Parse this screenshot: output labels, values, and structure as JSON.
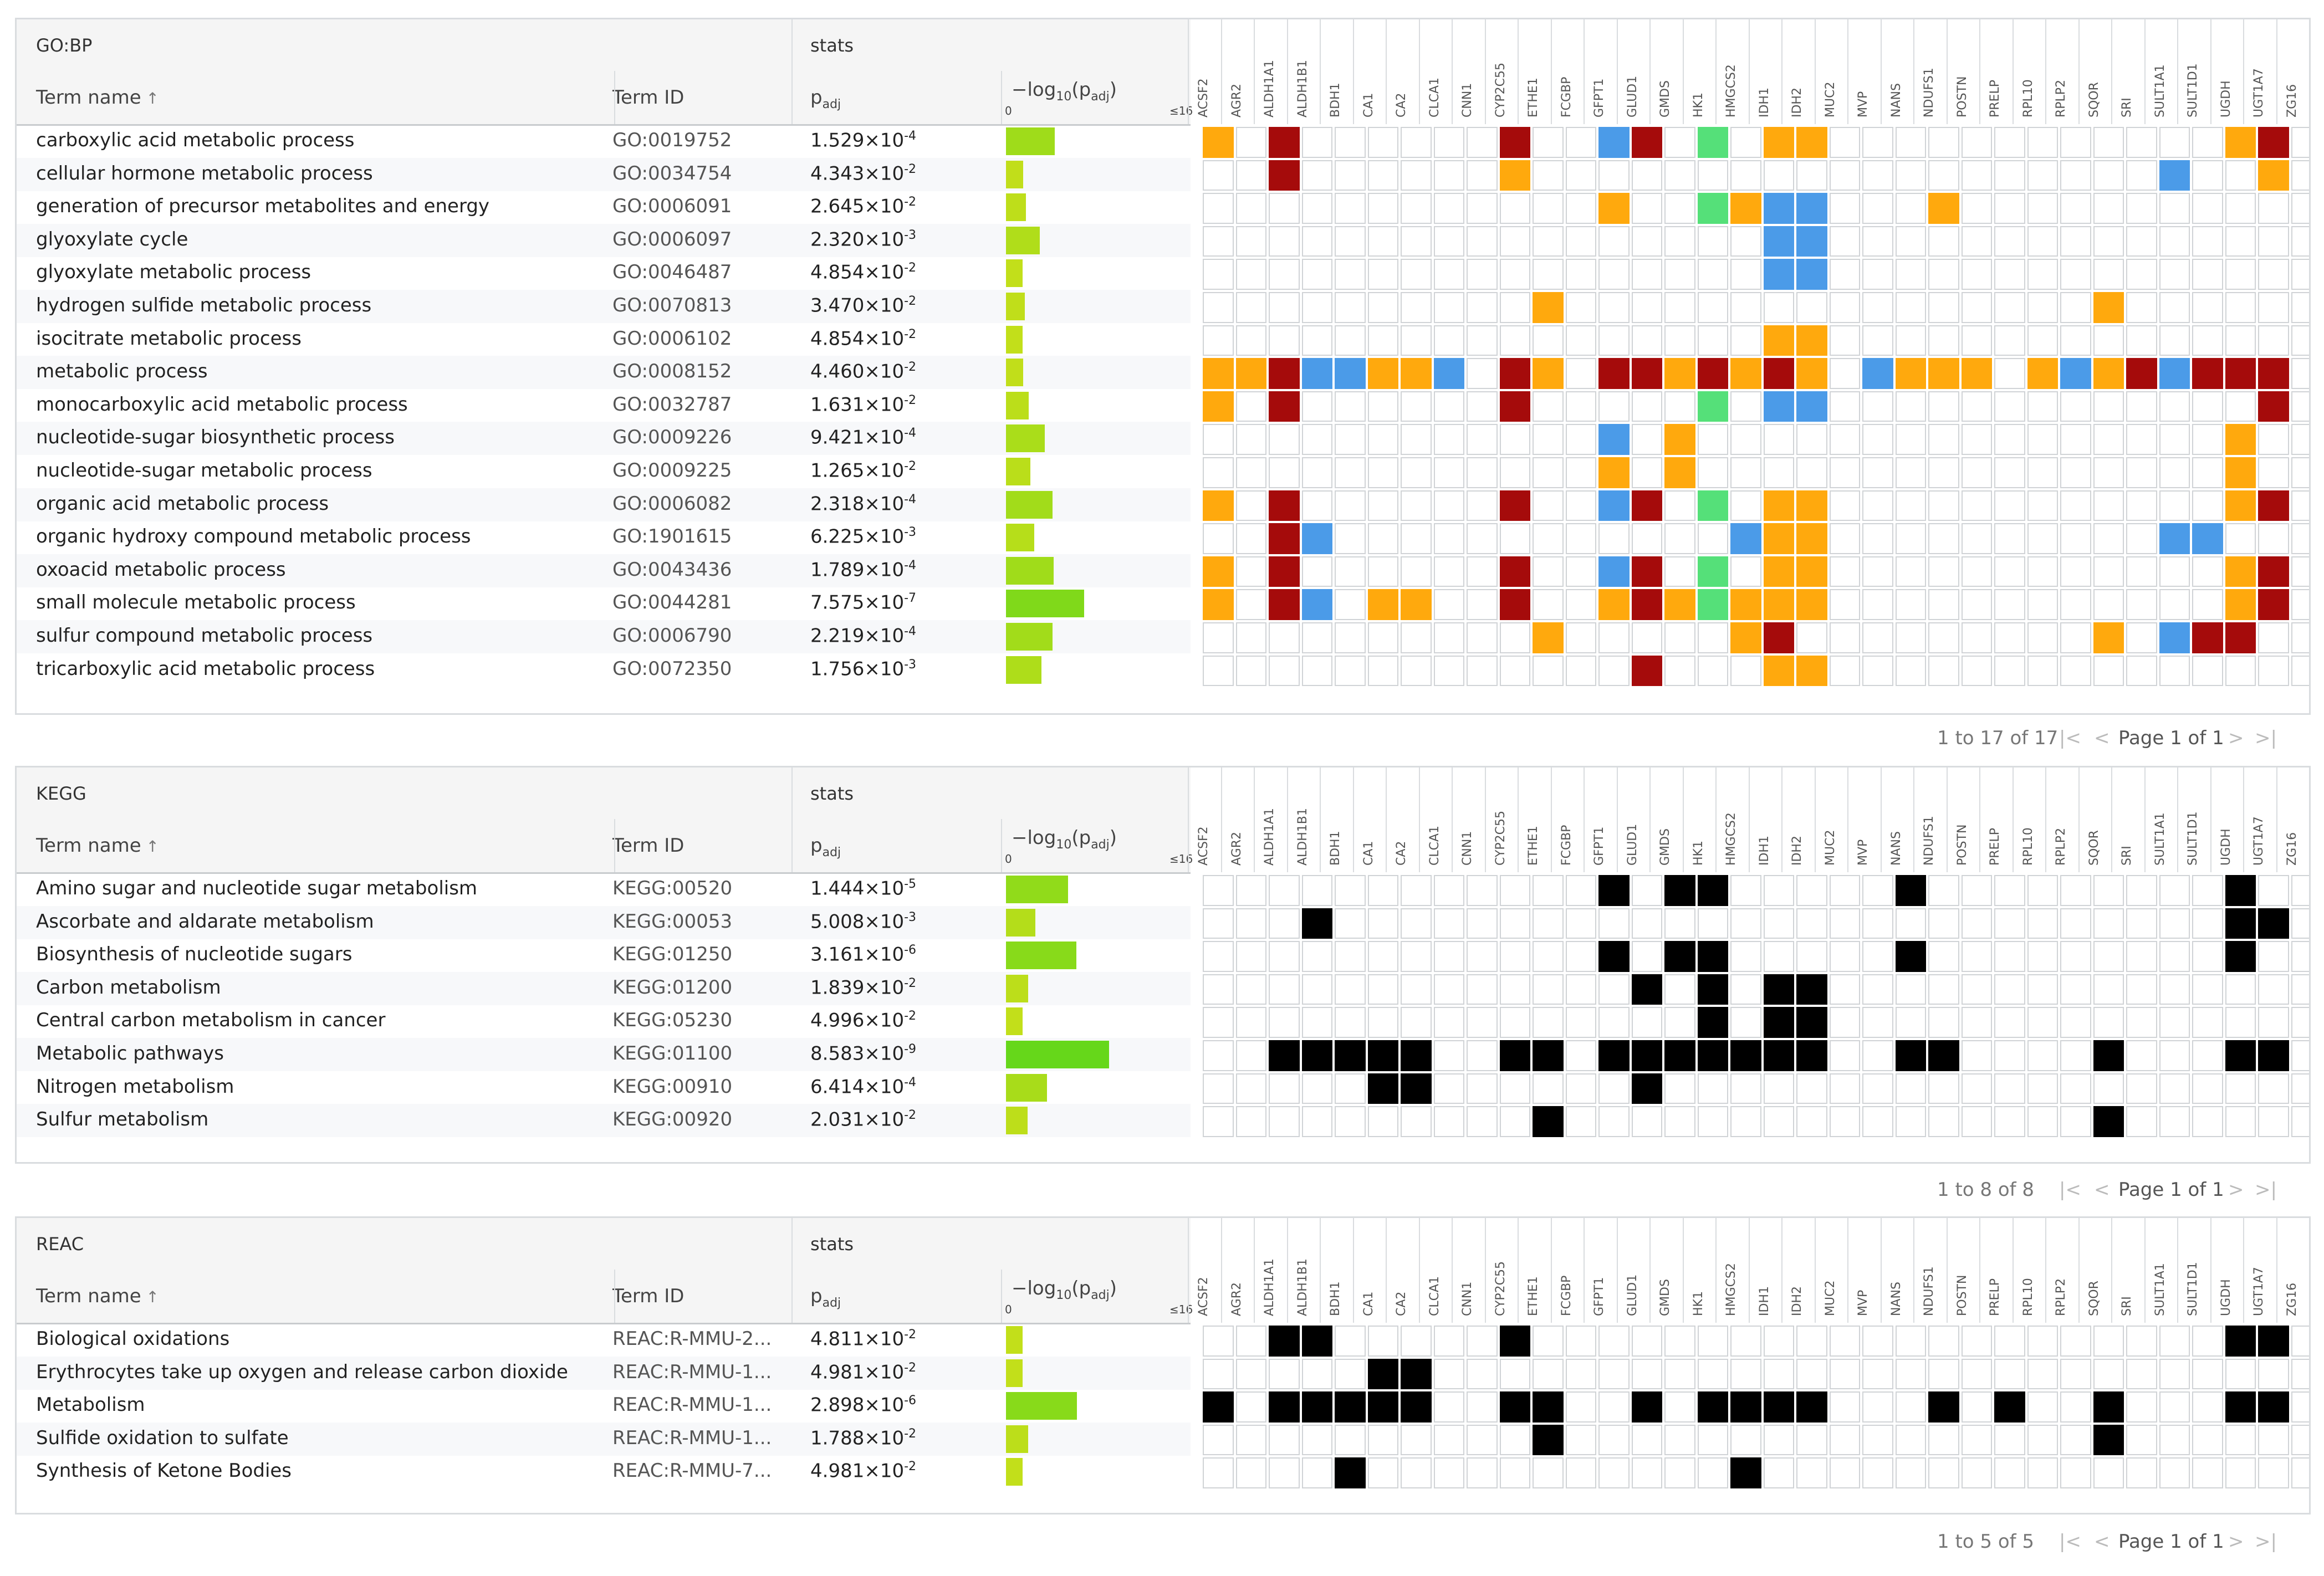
{
  "genes": [
    "ACSF2",
    "AGR2",
    "ALDH1A1",
    "ALDH1B1",
    "BDH1",
    "CA1",
    "CA2",
    "CLCA1",
    "CNN1",
    "CYP2C55",
    "ETHE1",
    "FCGBP",
    "GFPT1",
    "GLUD1",
    "GMDS",
    "HK1",
    "HMGCS2",
    "IDH1",
    "IDH2",
    "MUC2",
    "MVP",
    "NANS",
    "NDUFS1",
    "POSTN",
    "PRELP",
    "RPL10",
    "RPLP2",
    "SQOR",
    "SRI",
    "SULT1A1",
    "SULT1D1",
    "UGDH",
    "UGT1A7",
    "ZG16"
  ],
  "colors": {
    "orange": "#ffa90d",
    "darkred": "#a50b0b",
    "blue": "#4b9be8",
    "green": "#55e079",
    "black": "#000000",
    "empty": "#ffffff",
    "border": "#d0d3d6",
    "yellow": "#d4e01a",
    "lime": "#66d71a"
  },
  "columns": {
    "term_name": "Term name",
    "term_id": "Term ID",
    "padj": "p",
    "padj_sub": "adj",
    "log_label": "−log",
    "log_sub": "10",
    "log_paren_open": "(p",
    "log_paren_sub": "adj",
    "log_paren_close": ")",
    "stats": "stats",
    "sort_icon": "↑",
    "tick_min": "0",
    "tick_max": "≤16"
  },
  "pagination": {
    "first": "|<",
    "prev": "<",
    "page": "Page 1 of 1",
    "next": ">",
    "last": ">|"
  },
  "chart_data": [
    {
      "type": "table",
      "title": "GO:BP",
      "footer": "1 to 17 of 17",
      "xlim": [
        0,
        16
      ],
      "rows": [
        {
          "name": "carboxylic acid metabolic process",
          "id": "GO:0019752",
          "m": "1.529",
          "e": "-4",
          "v": 3.82,
          "genes": {
            "ACSF2": "o",
            "ALDH1A1": "r",
            "CYP2C55": "r",
            "GFPT1": "b",
            "GLUD1": "r",
            "HK1": "g",
            "IDH1": "o",
            "IDH2": "o",
            "UGDH": "o",
            "UGT1A7": "r"
          }
        },
        {
          "name": "cellular hormone metabolic process",
          "id": "GO:0034754",
          "m": "4.343",
          "e": "-2",
          "v": 1.36,
          "genes": {
            "ALDH1A1": "r",
            "CYP2C55": "o",
            "SULT1A1": "b",
            "UGT1A7": "o"
          }
        },
        {
          "name": "generation of precursor metabolites and energy",
          "id": "GO:0006091",
          "m": "2.645",
          "e": "-2",
          "v": 1.58,
          "genes": {
            "GFPT1": "o",
            "HK1": "g",
            "HMGCS2": "o",
            "IDH1": "b",
            "IDH2": "b",
            "NDUFS1": "o"
          }
        },
        {
          "name": "glyoxylate cycle",
          "id": "GO:0006097",
          "m": "2.320",
          "e": "-3",
          "v": 2.63,
          "genes": {
            "IDH1": "b",
            "IDH2": "b"
          }
        },
        {
          "name": "glyoxylate metabolic process",
          "id": "GO:0046487",
          "m": "4.854",
          "e": "-2",
          "v": 1.31,
          "genes": {
            "IDH1": "b",
            "IDH2": "b"
          }
        },
        {
          "name": "hydrogen sulfide metabolic process",
          "id": "GO:0070813",
          "m": "3.470",
          "e": "-2",
          "v": 1.46,
          "genes": {
            "ETHE1": "o",
            "SQOR": "o"
          }
        },
        {
          "name": "isocitrate metabolic process",
          "id": "GO:0006102",
          "m": "4.854",
          "e": "-2",
          "v": 1.31,
          "genes": {
            "IDH1": "o",
            "IDH2": "o"
          }
        },
        {
          "name": "metabolic process",
          "id": "GO:0008152",
          "m": "4.460",
          "e": "-2",
          "v": 1.35,
          "genes": {
            "ACSF2": "o",
            "AGR2": "o",
            "ALDH1A1": "r",
            "ALDH1B1": "b",
            "BDH1": "b",
            "CA1": "o",
            "CA2": "o",
            "CLCA1": "b",
            "CYP2C55": "r",
            "ETHE1": "o",
            "GFPT1": "r",
            "GLUD1": "r",
            "GMDS": "o",
            "HK1": "r",
            "HMGCS2": "o",
            "IDH1": "r",
            "IDH2": "o",
            "MVP": "b",
            "NANS": "o",
            "NDUFS1": "o",
            "POSTN": "o",
            "RPL10": "o",
            "RPLP2": "b",
            "SQOR": "o",
            "SRI": "r",
            "SULT1A1": "b",
            "SULT1D1": "r",
            "UGDH": "r",
            "UGT1A7": "r"
          }
        },
        {
          "name": "monocarboxylic acid metabolic process",
          "id": "GO:0032787",
          "m": "1.631",
          "e": "-2",
          "v": 1.79,
          "genes": {
            "ACSF2": "o",
            "ALDH1A1": "r",
            "CYP2C55": "r",
            "HK1": "g",
            "IDH1": "b",
            "IDH2": "b",
            "UGT1A7": "r"
          }
        },
        {
          "name": "nucleotide-sugar biosynthetic process",
          "id": "GO:0009226",
          "m": "9.421",
          "e": "-4",
          "v": 3.03,
          "genes": {
            "GFPT1": "b",
            "GMDS": "o",
            "UGDH": "o"
          }
        },
        {
          "name": "nucleotide-sugar metabolic process",
          "id": "GO:0009225",
          "m": "1.265",
          "e": "-2",
          "v": 1.9,
          "genes": {
            "GFPT1": "o",
            "GMDS": "o",
            "UGDH": "o"
          }
        },
        {
          "name": "organic acid metabolic process",
          "id": "GO:0006082",
          "m": "2.318",
          "e": "-4",
          "v": 3.63,
          "genes": {
            "ACSF2": "o",
            "ALDH1A1": "r",
            "CYP2C55": "r",
            "GFPT1": "b",
            "GLUD1": "r",
            "HK1": "g",
            "IDH1": "o",
            "IDH2": "o",
            "UGDH": "o",
            "UGT1A7": "r"
          }
        },
        {
          "name": "organic hydroxy compound metabolic process",
          "id": "GO:1901615",
          "m": "6.225",
          "e": "-3",
          "v": 2.21,
          "genes": {
            "ALDH1A1": "r",
            "ALDH1B1": "b",
            "HMGCS2": "b",
            "IDH1": "o",
            "IDH2": "o",
            "SULT1A1": "b",
            "SULT1D1": "b"
          }
        },
        {
          "name": "oxoacid metabolic process",
          "id": "GO:0043436",
          "m": "1.789",
          "e": "-4",
          "v": 3.75,
          "genes": {
            "ACSF2": "o",
            "ALDH1A1": "r",
            "CYP2C55": "r",
            "GFPT1": "b",
            "GLUD1": "r",
            "HK1": "g",
            "IDH1": "o",
            "IDH2": "o",
            "UGDH": "o",
            "UGT1A7": "r"
          }
        },
        {
          "name": "small molecule metabolic process",
          "id": "GO:0044281",
          "m": "7.575",
          "e": "-7",
          "v": 6.12,
          "genes": {
            "ACSF2": "o",
            "ALDH1A1": "r",
            "ALDH1B1": "b",
            "CA1": "o",
            "CA2": "o",
            "CYP2C55": "r",
            "GFPT1": "o",
            "GLUD1": "r",
            "GMDS": "o",
            "HK1": "g",
            "HMGCS2": "o",
            "IDH1": "o",
            "IDH2": "o",
            "UGDH": "o",
            "UGT1A7": "r"
          }
        },
        {
          "name": "sulfur compound metabolic process",
          "id": "GO:0006790",
          "m": "2.219",
          "e": "-4",
          "v": 3.65,
          "genes": {
            "ETHE1": "o",
            "HMGCS2": "o",
            "IDH1": "r",
            "SQOR": "o",
            "SULT1A1": "b",
            "SULT1D1": "r",
            "UGDH": "r"
          }
        },
        {
          "name": "tricarboxylic acid metabolic process",
          "id": "GO:0072350",
          "m": "1.756",
          "e": "-3",
          "v": 2.76,
          "genes": {
            "GLUD1": "r",
            "IDH1": "o",
            "IDH2": "o"
          }
        }
      ]
    },
    {
      "type": "table",
      "title": "KEGG",
      "footer": "1 to 8 of 8",
      "xlim": [
        0,
        16
      ],
      "rows": [
        {
          "name": "Amino sugar and nucleotide sugar metabolism",
          "id": "KEGG:00520",
          "m": "1.444",
          "e": "-5",
          "v": 4.84,
          "genes": {
            "GFPT1": "k",
            "GMDS": "k",
            "HK1": "k",
            "NANS": "k",
            "UGDH": "k"
          }
        },
        {
          "name": "Ascorbate and aldarate metabolism",
          "id": "KEGG:00053",
          "m": "5.008",
          "e": "-3",
          "v": 2.3,
          "genes": {
            "ALDH1B1": "k",
            "UGDH": "k",
            "UGT1A7": "k"
          }
        },
        {
          "name": "Biosynthesis of nucleotide sugars",
          "id": "KEGG:01250",
          "m": "3.161",
          "e": "-6",
          "v": 5.5,
          "genes": {
            "GFPT1": "k",
            "GMDS": "k",
            "HK1": "k",
            "NANS": "k",
            "UGDH": "k"
          }
        },
        {
          "name": "Carbon metabolism",
          "id": "KEGG:01200",
          "m": "1.839",
          "e": "-2",
          "v": 1.74,
          "genes": {
            "GLUD1": "k",
            "HK1": "k",
            "IDH1": "k",
            "IDH2": "k"
          }
        },
        {
          "name": "Central carbon metabolism in cancer",
          "id": "KEGG:05230",
          "m": "4.996",
          "e": "-2",
          "v": 1.3,
          "genes": {
            "HK1": "k",
            "IDH1": "k",
            "IDH2": "k"
          }
        },
        {
          "name": "Metabolic pathways",
          "id": "KEGG:01100",
          "m": "8.583",
          "e": "-9",
          "v": 8.07,
          "genes": {
            "ALDH1A1": "k",
            "ALDH1B1": "k",
            "BDH1": "k",
            "CA1": "k",
            "CA2": "k",
            "CYP2C55": "k",
            "ETHE1": "k",
            "GFPT1": "k",
            "GLUD1": "k",
            "GMDS": "k",
            "HK1": "k",
            "HMGCS2": "k",
            "IDH1": "k",
            "IDH2": "k",
            "NANS": "k",
            "NDUFS1": "k",
            "SQOR": "k",
            "UGDH": "k",
            "UGT1A7": "k"
          }
        },
        {
          "name": "Nitrogen metabolism",
          "id": "KEGG:00910",
          "m": "6.414",
          "e": "-4",
          "v": 3.19,
          "genes": {
            "CA1": "k",
            "CA2": "k",
            "GLUD1": "k"
          }
        },
        {
          "name": "Sulfur metabolism",
          "id": "KEGG:00920",
          "m": "2.031",
          "e": "-2",
          "v": 1.69,
          "genes": {
            "ETHE1": "k",
            "SQOR": "k"
          }
        }
      ]
    },
    {
      "type": "table",
      "title": "REAC",
      "footer": "1 to 5 of 5",
      "xlim": [
        0,
        16
      ],
      "rows": [
        {
          "name": "Biological oxidations",
          "id": "REAC:R-MMU-2...",
          "m": "4.811",
          "e": "-2",
          "v": 1.32,
          "genes": {
            "ALDH1A1": "k",
            "ALDH1B1": "k",
            "CYP2C55": "k",
            "UGDH": "k",
            "UGT1A7": "k"
          }
        },
        {
          "name": "Erythrocytes take up oxygen and release carbon dioxide",
          "id": "REAC:R-MMU-1...",
          "m": "4.981",
          "e": "-2",
          "v": 1.3,
          "genes": {
            "CA1": "k",
            "CA2": "k"
          }
        },
        {
          "name": "Metabolism",
          "id": "REAC:R-MMU-1...",
          "m": "2.898",
          "e": "-6",
          "v": 5.54,
          "genes": {
            "ACSF2": "k",
            "ALDH1A1": "k",
            "ALDH1B1": "k",
            "BDH1": "k",
            "CA1": "k",
            "CA2": "k",
            "CYP2C55": "k",
            "ETHE1": "k",
            "GLUD1": "k",
            "HK1": "k",
            "HMGCS2": "k",
            "IDH1": "k",
            "IDH2": "k",
            "NDUFS1": "k",
            "PRELP": "k",
            "SQOR": "k",
            "UGDH": "k",
            "UGT1A7": "k"
          }
        },
        {
          "name": "Sulfide oxidation to sulfate",
          "id": "REAC:R-MMU-1...",
          "m": "1.788",
          "e": "-2",
          "v": 1.75,
          "genes": {
            "ETHE1": "k",
            "SQOR": "k"
          }
        },
        {
          "name": "Synthesis of Ketone Bodies",
          "id": "REAC:R-MMU-7...",
          "m": "4.981",
          "e": "-2",
          "v": 1.3,
          "genes": {
            "BDH1": "k",
            "HMGCS2": "k"
          }
        }
      ]
    }
  ]
}
